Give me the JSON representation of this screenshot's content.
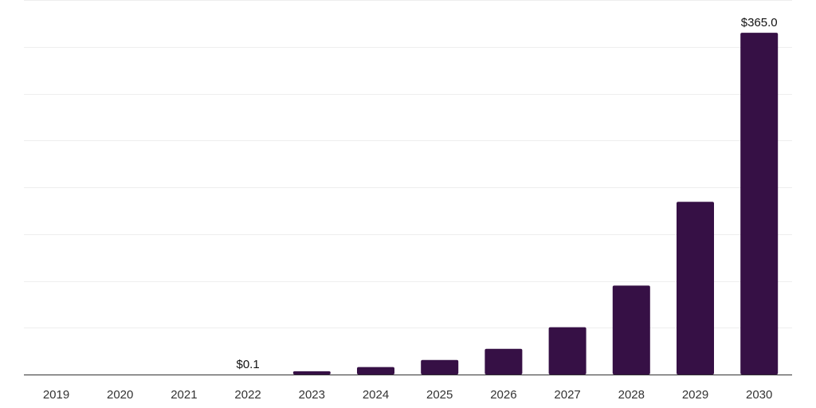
{
  "chart_data": {
    "type": "bar",
    "title": "",
    "xlabel": "",
    "ylabel": "",
    "categories": [
      "2019",
      "2020",
      "2021",
      "2022",
      "2023",
      "2024",
      "2025",
      "2026",
      "2027",
      "2028",
      "2029",
      "2030"
    ],
    "values": [
      0,
      0,
      0,
      0.1,
      3.5,
      8.0,
      15.5,
      27.5,
      50.5,
      95.0,
      184.5,
      365.0
    ],
    "value_labels": [
      "",
      "",
      "",
      "$0.1",
      "",
      "",
      "",
      "",
      "",
      "",
      "",
      "$365.0"
    ],
    "ylim": [
      0,
      400
    ],
    "gridlines": [
      0,
      50,
      100,
      150,
      200,
      250,
      300,
      350,
      400
    ],
    "grid": true,
    "y_tick_labels_shown": false,
    "bar_color": "#361045"
  }
}
